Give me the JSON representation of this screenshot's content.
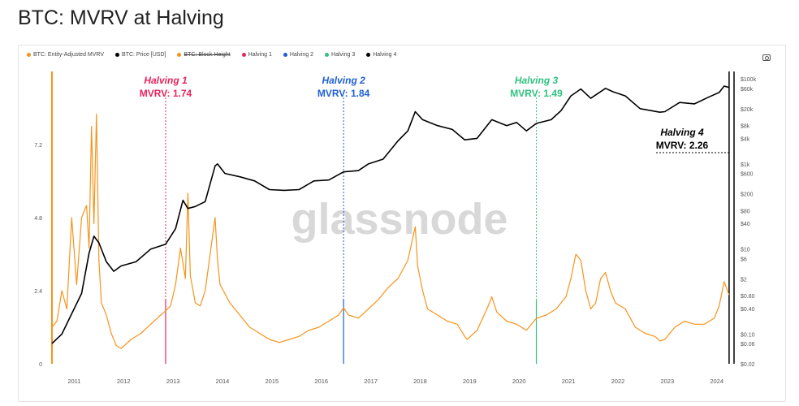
{
  "title": "BTC: MVRV at Halving",
  "legend": [
    {
      "label": "BTC: Entity-Adjusted MVRV",
      "color": "#f7931a",
      "strike": false
    },
    {
      "label": "BTC: Price [USD]",
      "color": "#000000",
      "strike": false
    },
    {
      "label": "BTC: Block Height",
      "color": "#f7931a",
      "strike": true
    },
    {
      "label": "Halving 1",
      "color": "#e8245c",
      "strike": false
    },
    {
      "label": "Halving 2",
      "color": "#1e5fd4",
      "strike": false
    },
    {
      "label": "Halving 3",
      "color": "#2ec27e",
      "strike": false
    },
    {
      "label": "Halving 4",
      "color": "#000000",
      "strike": false
    }
  ],
  "watermark": "glassnode",
  "annotations": [
    {
      "name": "Halving 1",
      "mvrv_text": "MVRV: 1.74",
      "color": "#e8245c",
      "x": 2012.9
    },
    {
      "name": "Halving 2",
      "mvrv_text": "MVRV: 1.84",
      "color": "#1e5fd4",
      "x": 2016.5
    },
    {
      "name": "Halving 3",
      "mvrv_text": "MVRV: 1.49",
      "color": "#2ec27e",
      "x": 2020.4
    },
    {
      "name": "Halving 4",
      "mvrv_text": "MVRV: 2.26",
      "color": "#000000",
      "x": 2024.3
    }
  ],
  "chart_data": {
    "type": "line",
    "title": "BTC: MVRV at Halving",
    "x_ticks": [
      "2011",
      "2012",
      "2013",
      "2014",
      "2015",
      "2016",
      "2017",
      "2018",
      "2019",
      "2020",
      "2021",
      "2022",
      "2023",
      "2024"
    ],
    "xlim": [
      2010.6,
      2024.4
    ],
    "left_axis": {
      "ticks": [
        "0",
        "2.4",
        "4.8",
        "7.2"
      ],
      "ylim": [
        0,
        9.6
      ]
    },
    "right_axis": {
      "scale": "log",
      "ticks": [
        "$100k",
        "$60k",
        "$20k",
        "$8k",
        "$4k",
        "$1k",
        "$600",
        "$200",
        "$80",
        "$40",
        "$10",
        "$6",
        "$2",
        "$0.80",
        "$0.40",
        "$0.10",
        "$0.06",
        "$0.02"
      ],
      "ylim": [
        0.02,
        150000
      ]
    },
    "series": [
      {
        "name": "BTC: Entity-Adjusted MVRV",
        "axis": "left",
        "color": "#f7931a",
        "x": [
          2010.6,
          2010.7,
          2010.8,
          2010.9,
          2011.0,
          2011.1,
          2011.2,
          2011.3,
          2011.35,
          2011.4,
          2011.45,
          2011.5,
          2011.55,
          2011.6,
          2011.7,
          2011.8,
          2011.9,
          2012.0,
          2012.2,
          2012.4,
          2012.6,
          2012.8,
          2012.9,
          2013.0,
          2013.1,
          2013.2,
          2013.3,
          2013.35,
          2013.4,
          2013.5,
          2013.6,
          2013.7,
          2013.8,
          2013.9,
          2013.95,
          2014.0,
          2014.2,
          2014.4,
          2014.6,
          2014.8,
          2015.0,
          2015.2,
          2015.4,
          2015.6,
          2015.8,
          2016.0,
          2016.2,
          2016.4,
          2016.5,
          2016.6,
          2016.8,
          2017.0,
          2017.2,
          2017.4,
          2017.6,
          2017.8,
          2017.95,
          2018.0,
          2018.1,
          2018.2,
          2018.4,
          2018.6,
          2018.8,
          2018.95,
          2019.0,
          2019.2,
          2019.4,
          2019.5,
          2019.6,
          2019.8,
          2020.0,
          2020.2,
          2020.4,
          2020.6,
          2020.8,
          2021.0,
          2021.1,
          2021.2,
          2021.3,
          2021.4,
          2021.5,
          2021.6,
          2021.7,
          2021.8,
          2021.9,
          2022.0,
          2022.2,
          2022.4,
          2022.6,
          2022.8,
          2022.9,
          2023.0,
          2023.2,
          2023.4,
          2023.6,
          2023.8,
          2024.0,
          2024.1,
          2024.2,
          2024.3
        ],
        "values": [
          1.2,
          1.4,
          2.4,
          1.8,
          4.8,
          2.6,
          4.8,
          5.2,
          3.8,
          7.8,
          4.6,
          8.2,
          3.4,
          2.0,
          1.6,
          1.0,
          0.6,
          0.5,
          0.8,
          1.0,
          1.3,
          1.6,
          1.74,
          1.9,
          2.6,
          3.8,
          2.8,
          5.6,
          2.9,
          2.0,
          1.9,
          2.4,
          3.6,
          4.8,
          3.4,
          2.6,
          2.0,
          1.6,
          1.2,
          1.0,
          0.8,
          0.7,
          0.8,
          0.9,
          1.1,
          1.2,
          1.4,
          1.6,
          1.84,
          1.6,
          1.5,
          1.8,
          2.1,
          2.5,
          2.8,
          3.4,
          4.5,
          3.2,
          2.4,
          1.8,
          1.6,
          1.4,
          1.3,
          0.9,
          0.8,
          1.1,
          1.8,
          2.2,
          1.7,
          1.4,
          1.3,
          1.1,
          1.49,
          1.6,
          1.8,
          2.2,
          2.8,
          3.6,
          3.4,
          2.4,
          1.8,
          2.0,
          2.8,
          3.0,
          2.4,
          2.0,
          1.8,
          1.2,
          1.0,
          0.9,
          0.75,
          0.8,
          1.2,
          1.4,
          1.3,
          1.3,
          1.5,
          1.9,
          2.7,
          2.26
        ]
      },
      {
        "name": "BTC: Price [USD]",
        "axis": "right",
        "color": "#000000",
        "x": [
          2010.6,
          2010.8,
          2011.0,
          2011.2,
          2011.35,
          2011.45,
          2011.55,
          2011.7,
          2011.85,
          2012.0,
          2012.3,
          2012.6,
          2012.9,
          2013.1,
          2013.25,
          2013.35,
          2013.5,
          2013.7,
          2013.9,
          2013.95,
          2014.1,
          2014.4,
          2014.7,
          2015.0,
          2015.3,
          2015.6,
          2015.9,
          2016.2,
          2016.5,
          2016.8,
          2017.0,
          2017.3,
          2017.6,
          2017.8,
          2017.95,
          2018.1,
          2018.4,
          2018.7,
          2018.95,
          2019.2,
          2019.5,
          2019.8,
          2020.0,
          2020.2,
          2020.4,
          2020.7,
          2020.9,
          2021.1,
          2021.3,
          2021.5,
          2021.8,
          2021.95,
          2022.2,
          2022.5,
          2022.9,
          2023.0,
          2023.3,
          2023.6,
          2023.9,
          2024.1,
          2024.2,
          2024.3
        ],
        "values": [
          0.06,
          0.1,
          0.3,
          0.9,
          8,
          20,
          14,
          5,
          3,
          4,
          5,
          10,
          13,
          30,
          140,
          90,
          100,
          130,
          900,
          1000,
          600,
          500,
          400,
          250,
          240,
          250,
          400,
          420,
          650,
          700,
          1000,
          1300,
          3500,
          6000,
          17000,
          11000,
          8000,
          6500,
          3700,
          4000,
          11000,
          8000,
          9500,
          6000,
          9000,
          11000,
          18000,
          40000,
          58000,
          35000,
          60000,
          50000,
          40000,
          20000,
          16500,
          17000,
          28000,
          26000,
          38000,
          48000,
          68000,
          63000
        ]
      }
    ]
  }
}
